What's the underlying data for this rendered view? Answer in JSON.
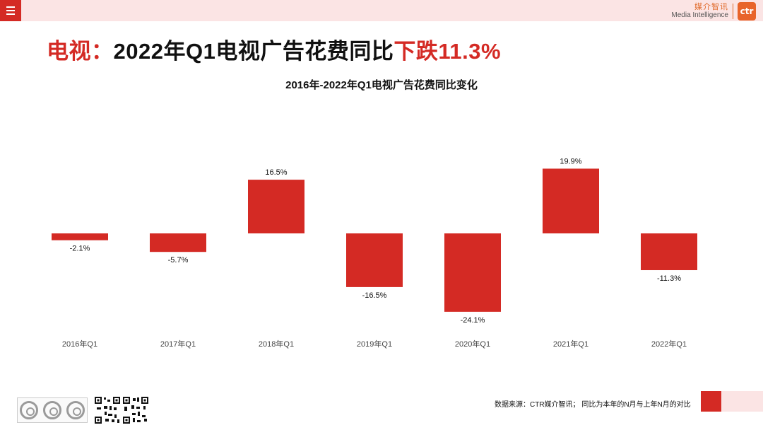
{
  "header": {
    "menu_icon": "menu-icon",
    "brand_cn": "媒介智讯",
    "brand_en": "Media Intelligence",
    "brand_logo": "ctr"
  },
  "headline": {
    "part1": "电视：",
    "part2": "2022年Q1电视广告花费同比",
    "part3": "下跌11.3%"
  },
  "chart_data": {
    "type": "bar",
    "title": "2016年-2022年Q1电视广告花费同比变化",
    "categories": [
      "2016年Q1",
      "2017年Q1",
      "2018年Q1",
      "2019年Q1",
      "2020年Q1",
      "2021年Q1",
      "2022年Q1"
    ],
    "values": [
      -2.1,
      -5.7,
      16.5,
      -16.5,
      -24.1,
      19.9,
      -11.3
    ],
    "labels": [
      "-2.1%",
      "-5.7%",
      "16.5%",
      "-16.5%",
      "-24.1%",
      "19.9%",
      "-11.3%"
    ],
    "xlabel": "",
    "ylabel": "",
    "grid": false,
    "color": "#d42a24"
  },
  "footer": {
    "source": "数据来源：CTR媒介智讯；  同比为本年的N月与上年N月的对比",
    "cert_icon": "sgs-certification-seal-icon",
    "qr_icon": "qr-code-icon"
  },
  "colors": {
    "accent": "#d42a24",
    "topbar": "#fbe4e4",
    "brand": "#e8642a"
  }
}
